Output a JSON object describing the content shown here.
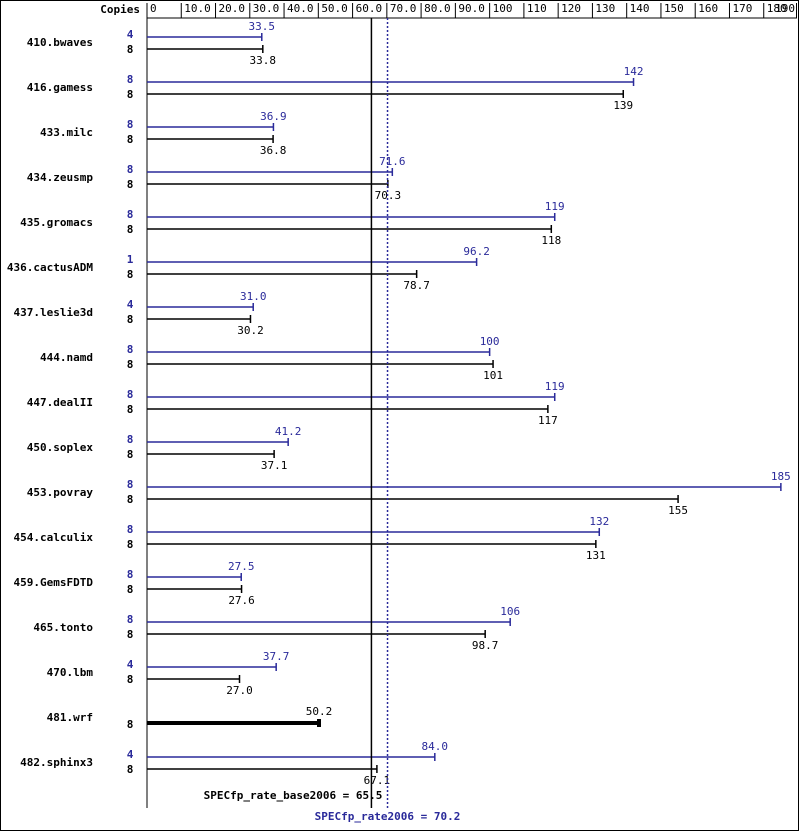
{
  "chart_data": {
    "type": "bar",
    "copies_label": "Copies",
    "categories": [
      "410.bwaves",
      "416.gamess",
      "433.milc",
      "434.zeusmp",
      "435.gromacs",
      "436.cactusADM",
      "437.leslie3d",
      "444.namd",
      "447.dealII",
      "450.soplex",
      "453.povray",
      "454.calculix",
      "459.GemsFDTD",
      "465.tonto",
      "470.lbm",
      "481.wrf",
      "482.sphinx3"
    ],
    "series": [
      {
        "color": "#2a2a9a",
        "copies": [
          4,
          8,
          8,
          8,
          8,
          1,
          4,
          8,
          8,
          8,
          8,
          8,
          8,
          8,
          4,
          null,
          4
        ],
        "values": [
          33.5,
          142,
          36.9,
          71.6,
          119,
          96.2,
          31.0,
          100,
          119,
          41.2,
          185,
          132,
          27.5,
          106,
          37.7,
          null,
          84.0
        ],
        "value_labels": [
          "33.5",
          "142",
          "36.9",
          "71.6",
          "119",
          "96.2",
          "31.0",
          "100",
          "119",
          "41.2",
          "185",
          "132",
          "27.5",
          "106",
          "37.7",
          null,
          "84.0"
        ]
      },
      {
        "color": "#000000",
        "copies": [
          8,
          8,
          8,
          8,
          8,
          8,
          8,
          8,
          8,
          8,
          8,
          8,
          8,
          8,
          8,
          8,
          8
        ],
        "values": [
          33.8,
          139,
          36.8,
          70.3,
          118,
          78.7,
          30.2,
          101,
          117,
          37.1,
          155,
          131,
          27.6,
          98.7,
          27.0,
          50.2,
          67.1
        ],
        "value_labels": [
          "33.8",
          "139",
          "36.8",
          "70.3",
          "118",
          "78.7",
          "30.2",
          "101",
          "117",
          "37.1",
          "155",
          "131",
          "27.6",
          "98.7",
          "27.0",
          "50.2",
          "67.1"
        ]
      }
    ],
    "xlim": [
      0,
      190
    ],
    "xticks": [
      0,
      {
        "value": 10,
        "label": "10.0"
      },
      {
        "value": 20,
        "label": "20.0"
      },
      {
        "value": 30,
        "label": "30.0"
      },
      {
        "value": 40,
        "label": "40.0"
      },
      {
        "value": 50,
        "label": "50.0"
      },
      {
        "value": 60,
        "label": "60.0"
      },
      {
        "value": 70,
        "label": "70.0"
      },
      {
        "value": 80,
        "label": "80.0"
      },
      {
        "value": 90,
        "label": "90.0"
      },
      100,
      110,
      120,
      130,
      140,
      150,
      160,
      170,
      180,
      190
    ],
    "reference_lines": [
      {
        "value": 65.5,
        "label": "SPECfp_rate_base2006 = 65.5",
        "color": "#000000",
        "style": "solid"
      },
      {
        "value": 70.2,
        "label": "SPECfp_rate2006 = 70.2",
        "color": "#2a2a9a",
        "style": "dotted"
      }
    ]
  }
}
